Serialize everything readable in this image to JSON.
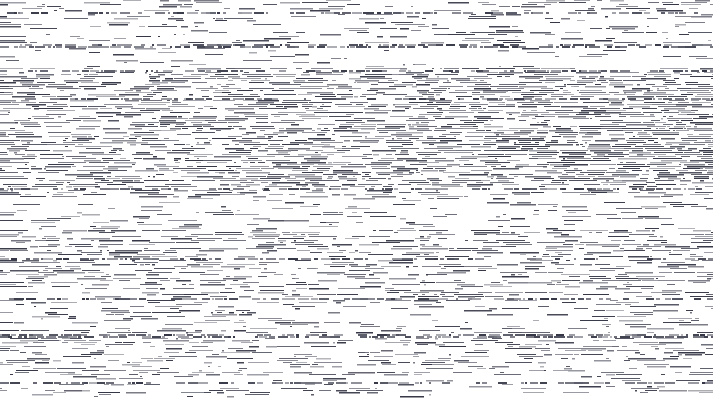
{
  "image": {
    "description_kind": "noisy-raster-scan",
    "colors": {
      "background": "#ffffff",
      "ink": "#2a2c3c"
    }
  }
}
